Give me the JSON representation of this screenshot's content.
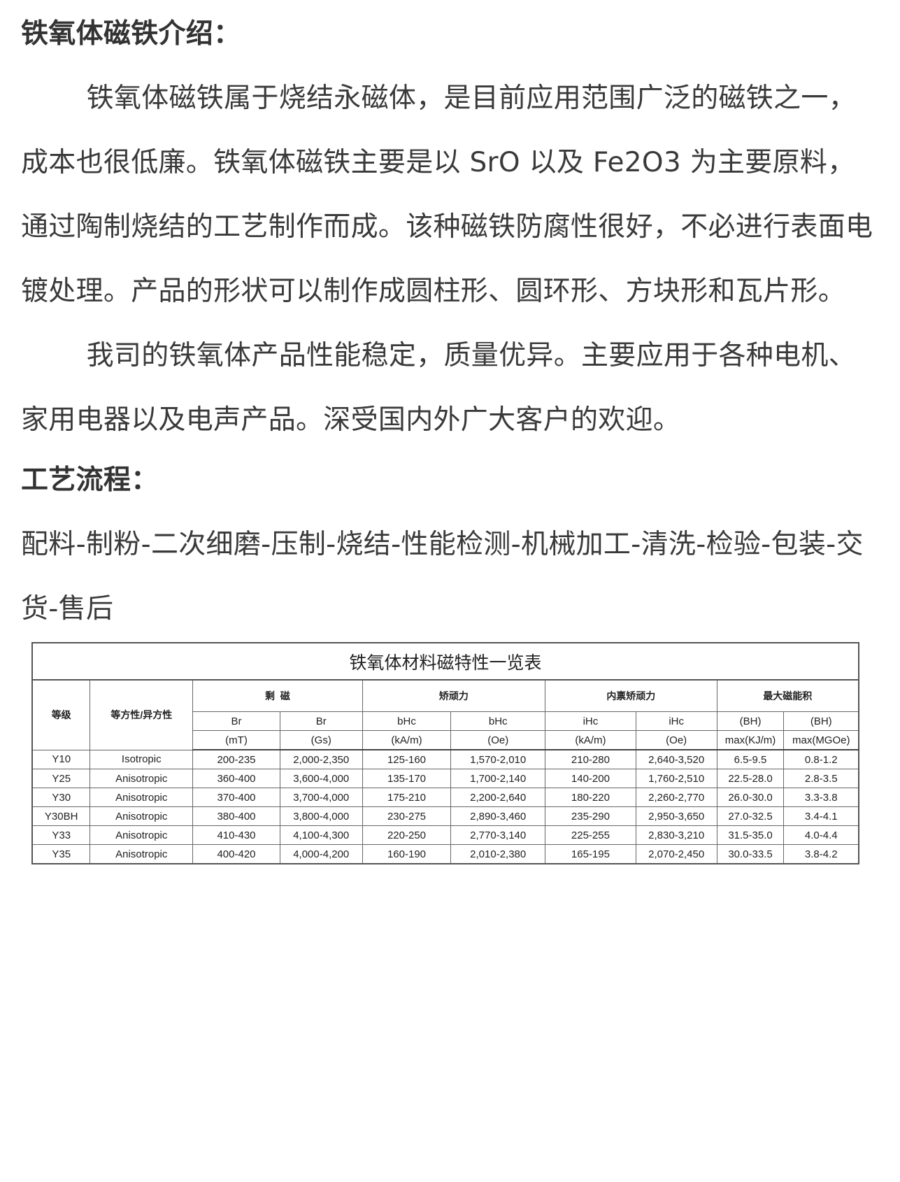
{
  "intro": {
    "heading": "铁氧体磁铁介绍：",
    "paragraph1": "铁氧体磁铁属于烧结永磁体，是目前应用范围广泛的磁铁之一，成本也很低廉。铁氧体磁铁主要是以 SrO 以及 Fe2O3 为主要原料，通过陶制烧结的工艺制作而成。该种磁铁防腐性很好，不必进行表面电镀处理。产品的形状可以制作成圆柱形、圆环形、方块形和瓦片形。",
    "paragraph2": "我司的铁氧体产品性能稳定，质量优异。主要应用于各种电机、家用电器以及电声产品。深受国内外广大客户的欢迎。"
  },
  "process": {
    "heading": "工艺流程：",
    "steps": "配料-制粉-二次细磨-压制-烧结-性能检测-机械加工-清洗-检验-包装-交货-售后"
  },
  "table": {
    "title": "铁氧体材料磁特性一览表",
    "col_grade": "等级",
    "col_type": "等方性/异方性",
    "groups": [
      "剩  磁",
      "矫顽力",
      "内禀矫顽力",
      "最大磁能积"
    ],
    "sub1": [
      "Br",
      "Br",
      "bHc",
      "bHc",
      "iHc",
      "iHc",
      "(BH)",
      "(BH)"
    ],
    "sub2": [
      "(mT)",
      "(Gs)",
      "(kA/m)",
      "(Oe)",
      "(kA/m)",
      "(Oe)",
      "max(KJ/m)",
      "max(MGOe)"
    ],
    "rows": [
      [
        "Y10",
        "Isotropic",
        "200-235",
        "2,000-2,350",
        "125-160",
        "1,570-2,010",
        "210-280",
        "2,640-3,520",
        "6.5-9.5",
        "0.8-1.2"
      ],
      [
        "Y25",
        "Anisotropic",
        "360-400",
        "3,600-4,000",
        "135-170",
        "1,700-2,140",
        "140-200",
        "1,760-2,510",
        "22.5-28.0",
        "2.8-3.5"
      ],
      [
        "Y30",
        "Anisotropic",
        "370-400",
        "3,700-4,000",
        "175-210",
        "2,200-2,640",
        "180-220",
        "2,260-2,770",
        "26.0-30.0",
        "3.3-3.8"
      ],
      [
        "Y30BH",
        "Anisotropic",
        "380-400",
        "3,800-4,000",
        "230-275",
        "2,890-3,460",
        "235-290",
        "2,950-3,650",
        "27.0-32.5",
        "3.4-4.1"
      ],
      [
        "Y33",
        "Anisotropic",
        "410-430",
        "4,100-4,300",
        "220-250",
        "2,770-3,140",
        "225-255",
        "2,830-3,210",
        "31.5-35.0",
        "4.0-4.4"
      ],
      [
        "Y35",
        "Anisotropic",
        "400-420",
        "4,000-4,200",
        "160-190",
        "2,010-2,380",
        "165-195",
        "2,070-2,450",
        "30.0-33.5",
        "3.8-4.2"
      ]
    ]
  }
}
